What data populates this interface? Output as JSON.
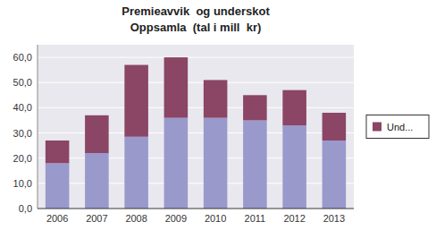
{
  "chart_data": {
    "type": "bar",
    "stacked": true,
    "title": "Premieavvik  og underskot",
    "subtitle": "Oppsamla  (tal i mill  kr)",
    "categories": [
      "2006",
      "2007",
      "2008",
      "2009",
      "2010",
      "2011",
      "2012",
      "2013"
    ],
    "series": [
      {
        "color": "#9999CC",
        "values": [
          18.0,
          22.0,
          28.5,
          36.0,
          36.0,
          35.0,
          33.0,
          27.0
        ]
      },
      {
        "name": "Und...",
        "color": "#8B4565",
        "values": [
          9.0,
          15.0,
          28.5,
          24.0,
          15.0,
          10.0,
          14.0,
          11.0
        ]
      }
    ],
    "ylim": [
      0,
      65
    ],
    "yticks": [
      {
        "value": 0.0,
        "label": "0,0"
      },
      {
        "value": 10.0,
        "label": "10,0"
      },
      {
        "value": 20.0,
        "label": "20,0"
      },
      {
        "value": 30.0,
        "label": "30,0"
      },
      {
        "value": 40.0,
        "label": "40,0"
      },
      {
        "value": 50.0,
        "label": "50,0"
      },
      {
        "value": 60.0,
        "label": "60,0"
      }
    ],
    "grid": true,
    "legend": "right"
  }
}
